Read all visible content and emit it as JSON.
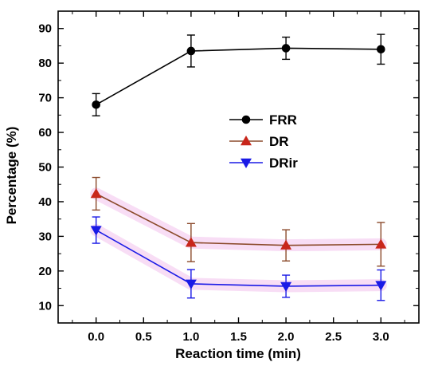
{
  "chart_data": {
    "type": "line",
    "title": "",
    "xlabel": "Reaction time (min)",
    "ylabel": "Percentage (%)",
    "xlim": [
      -0.4,
      3.4
    ],
    "ylim": [
      5,
      95
    ],
    "xticks": [
      0.0,
      0.5,
      1.0,
      1.5,
      2.0,
      2.5,
      3.0
    ],
    "xtick_labels": [
      "0.0",
      "0.5",
      "1.0",
      "1.5",
      "2.0",
      "2.5",
      "3.0"
    ],
    "yticks": [
      10,
      20,
      30,
      40,
      50,
      60,
      70,
      80,
      90
    ],
    "ytick_labels": [
      "10",
      "20",
      "30",
      "40",
      "50",
      "60",
      "70",
      "80",
      "90"
    ],
    "x": [
      0,
      1,
      2,
      3
    ],
    "grid": false,
    "legend_position": "center-right",
    "series": [
      {
        "name": "FRR",
        "marker": "circle",
        "color": "#000000",
        "values": [
          68.0,
          83.5,
          84.3,
          84.0
        ],
        "errors": [
          3.2,
          4.6,
          3.2,
          4.3
        ]
      },
      {
        "name": "DR",
        "marker": "triangle-up",
        "color": "#c8261b",
        "line_color": "#8b4a2b",
        "values": [
          42.3,
          28.2,
          27.4,
          27.7
        ],
        "errors": [
          4.7,
          5.5,
          4.5,
          6.3
        ]
      },
      {
        "name": "DRir",
        "marker": "triangle-down",
        "color": "#1a1ae6",
        "values": [
          31.8,
          16.3,
          15.6,
          15.9
        ],
        "errors": [
          3.8,
          4.1,
          3.2,
          4.4
        ]
      }
    ]
  }
}
